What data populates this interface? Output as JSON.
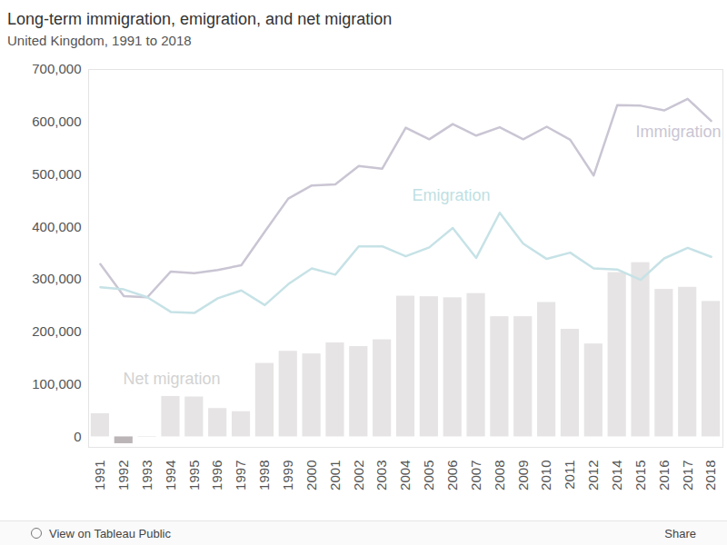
{
  "chart_data": {
    "type": "bar",
    "title": "Long-term immigration, emigration, and net migration",
    "subtitle": "United Kingdom, 1991 to 2018",
    "categories": [
      "1991",
      "1992",
      "1993",
      "1994",
      "1995",
      "1996",
      "1997",
      "1998",
      "1999",
      "2000",
      "2001",
      "2002",
      "2003",
      "2004",
      "2005",
      "2006",
      "2007",
      "2008",
      "2009",
      "2010",
      "2011",
      "2012",
      "2014",
      "2015",
      "2016",
      "2017",
      "2018"
    ],
    "series": [
      {
        "name": "Net migration",
        "type": "bar",
        "color": "#e6e4e4",
        "colors": [
          "#e6e4e4",
          "#bcb5b7",
          "#e6e4e4",
          "#e6e4e4",
          "#e6e4e4",
          "#e6e4e4",
          "#e6e4e4",
          "#e6e4e4",
          "#e6e4e4",
          "#e6e4e4",
          "#e6e4e4",
          "#e6e4e4",
          "#e6e4e4",
          "#e6e4e4",
          "#e6e4e4",
          "#e6e4e4",
          "#e6e4e4",
          "#e6e4e4",
          "#e6e4e4",
          "#e6e4e4",
          "#e6e4e4",
          "#e6e4e4",
          "#e6e4e4",
          "#e6e4e4",
          "#e6e4e4",
          "#e6e4e4",
          "#e6e4e4"
        ],
        "values": [
          44000,
          -13000,
          -1000,
          77000,
          76000,
          54000,
          48000,
          140000,
          163000,
          158000,
          179000,
          172000,
          185000,
          268000,
          267000,
          265000,
          273000,
          229000,
          229000,
          256000,
          205000,
          177000,
          313000,
          332000,
          281000,
          285000,
          258000
        ]
      },
      {
        "name": "Immigration",
        "type": "line",
        "color": "#cac5d3",
        "values": [
          329000,
          268000,
          266000,
          315000,
          312000,
          318000,
          327000,
          391000,
          454000,
          479000,
          481000,
          516000,
          511000,
          589000,
          567000,
          596000,
          574000,
          590000,
          567000,
          591000,
          566000,
          498000,
          632000,
          631000,
          622000,
          644000,
          602000
        ]
      },
      {
        "name": "Emigration",
        "type": "line",
        "color": "#c6e2e6",
        "values": [
          285000,
          281000,
          266000,
          238000,
          236000,
          264000,
          279000,
          251000,
          291000,
          321000,
          309000,
          363000,
          363000,
          344000,
          361000,
          398000,
          341000,
          427000,
          368000,
          339000,
          351000,
          321000,
          319000,
          299000,
          340000,
          360000,
          343000
        ]
      }
    ],
    "ylim": [
      -20000,
      700000
    ],
    "yticks": [
      0,
      {
        "value": 100000,
        "label": "100,000"
      },
      {
        "value": 200000,
        "label": "200,000"
      },
      {
        "value": 300000,
        "label": "300,000"
      },
      {
        "value": 400000,
        "label": "400,000"
      },
      {
        "value": 500000,
        "label": "500,000"
      },
      {
        "value": 600000,
        "label": "600,000"
      },
      {
        "value": 700000,
        "label": "700,000"
      }
    ],
    "grid": false
  },
  "toolbar": {
    "left": "View on Tableau Public",
    "right": "Share"
  }
}
